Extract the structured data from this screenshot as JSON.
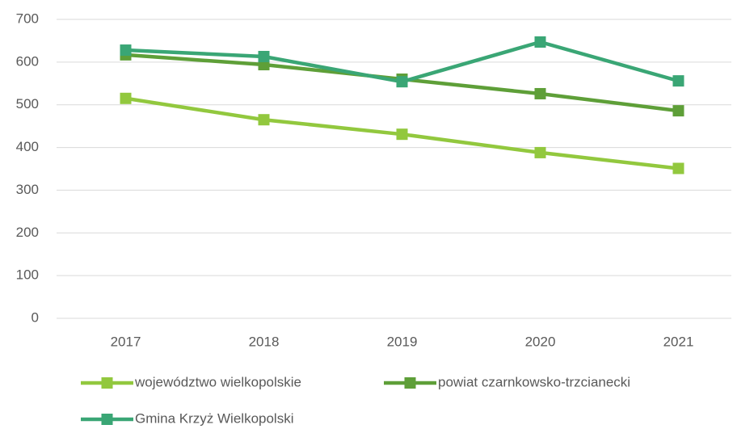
{
  "chart_data": {
    "type": "line",
    "categories": [
      "2017",
      "2018",
      "2019",
      "2020",
      "2021"
    ],
    "series": [
      {
        "name": "województwo wielkopolskie",
        "color": "#92c83e",
        "values": [
          515,
          465,
          431,
          388,
          351
        ]
      },
      {
        "name": "powiat czarnkowsko-trzcianecki",
        "color": "#5e9f38",
        "values": [
          617,
          594,
          560,
          526,
          486
        ]
      },
      {
        "name": "Gmina Krzyż Wielkopolski",
        "color": "#3aa675",
        "values": [
          628,
          613,
          554,
          647,
          556
        ]
      }
    ],
    "ylim": [
      0,
      700
    ],
    "yticks": [
      0,
      100,
      200,
      300,
      400,
      500,
      600,
      700
    ],
    "grid": true,
    "legend": "bottom"
  }
}
